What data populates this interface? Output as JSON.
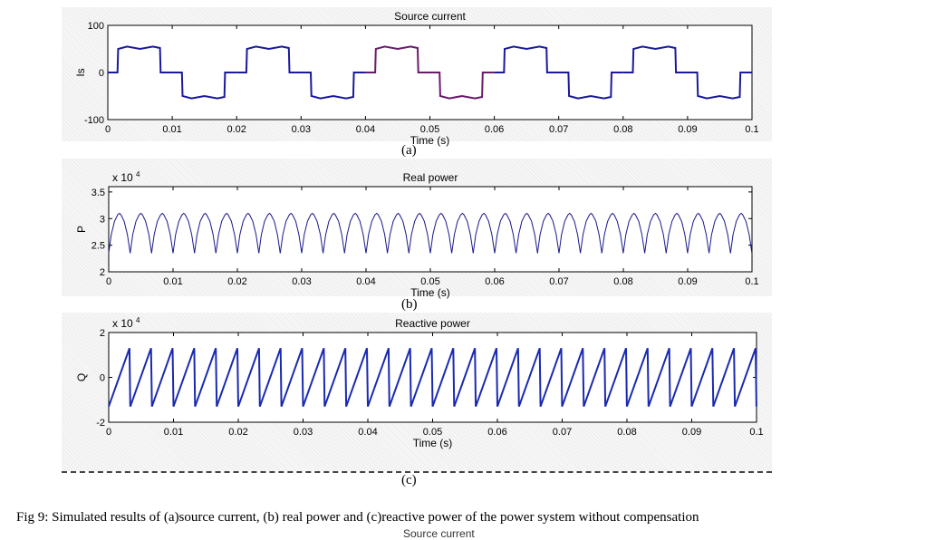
{
  "chart_data": [
    {
      "type": "line",
      "title": "Source current",
      "xlabel": "Time (s)",
      "ylabel": "Is",
      "xlim": [
        0,
        0.1
      ],
      "ylim": [
        -100,
        100
      ],
      "xticks": [
        "0",
        "0.01",
        "0.02",
        "0.03",
        "0.04",
        "0.05",
        "0.06",
        "0.07",
        "0.08",
        "0.09",
        "0.1"
      ],
      "yticks": [
        "-100",
        "0",
        "100"
      ],
      "exponent": "",
      "period": 0.02,
      "period_x": [
        0,
        0.0015,
        0.0016,
        0.003,
        0.005,
        0.007,
        0.0081,
        0.0082,
        0.0115,
        0.0116,
        0.013,
        0.015,
        0.017,
        0.0181,
        0.0182,
        0.02
      ],
      "period_y": [
        0,
        0,
        50,
        55,
        50,
        55,
        52,
        0,
        0,
        -50,
        -55,
        -50,
        -55,
        -52,
        0,
        0
      ],
      "colors": [
        "#1a1a9a",
        "#6a1a6a"
      ],
      "panel_label": "(a)"
    },
    {
      "type": "line",
      "title": "Real power",
      "xlabel": "Time (s)",
      "ylabel": "P",
      "xlim": [
        0,
        0.1
      ],
      "ylim": [
        2,
        3.6
      ],
      "xticks": [
        "0",
        "0.01",
        "0.02",
        "0.03",
        "0.04",
        "0.05",
        "0.06",
        "0.07",
        "0.08",
        "0.09",
        "0.1"
      ],
      "yticks": [
        "2",
        "2.5",
        "3",
        "3.5"
      ],
      "exponent": "x 10",
      "exponent_power": "4",
      "period": 0.003333,
      "period_x": [
        0,
        0.0004,
        0.0009,
        0.0014,
        0.00167,
        0.0019,
        0.0024,
        0.0029,
        0.003333
      ],
      "period_y": [
        2.35,
        2.7,
        2.95,
        3.07,
        3.1,
        3.07,
        2.95,
        2.7,
        2.35
      ],
      "colors": [
        "#1a1a8a"
      ],
      "panel_label": "(b)"
    },
    {
      "type": "line",
      "title": "Reactive power",
      "xlabel": "Time (s)",
      "ylabel": "Q",
      "xlim": [
        0,
        0.1
      ],
      "ylim": [
        -2,
        2
      ],
      "xticks": [
        "0",
        "0.01",
        "0.02",
        "0.03",
        "0.04",
        "0.05",
        "0.06",
        "0.07",
        "0.08",
        "0.09",
        "0.1"
      ],
      "yticks": [
        "-2",
        "0",
        "2"
      ],
      "exponent": "x 10",
      "exponent_power": "4",
      "period": 0.003333,
      "period_x": [
        0,
        0.0032,
        0.003333
      ],
      "period_y": [
        -1.3,
        1.3,
        -1.3
      ],
      "colors": [
        "#1a2ab0"
      ],
      "panel_label": "(c)"
    }
  ],
  "caption": "Fig 9: Simulated results of (a)source current, (b) real power and (c)reactive power of the power system without compensation",
  "cut_text": "Source current"
}
